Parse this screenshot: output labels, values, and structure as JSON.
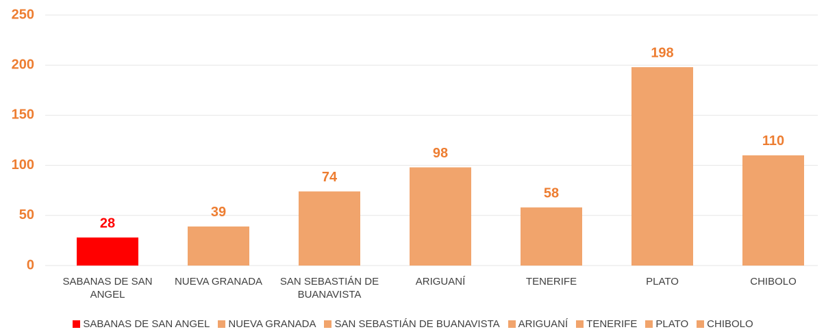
{
  "chart_data": {
    "type": "bar",
    "categories": [
      "SABANAS DE SAN ANGEL",
      "NUEVA GRANADA",
      "SAN SEBASTIÁN DE BUANAVISTA",
      "ARIGUANÍ",
      "TENERIFE",
      "PLATO",
      "CHIBOLO"
    ],
    "values": [
      28,
      39,
      74,
      98,
      58,
      198,
      110
    ],
    "colors": [
      "#ff0000",
      "#f1a46c",
      "#f1a46c",
      "#f1a46c",
      "#f1a46c",
      "#f1a46c",
      "#f1a46c"
    ],
    "value_label_colors": [
      "#ff0000",
      "#ed7d31",
      "#ed7d31",
      "#ed7d31",
      "#ed7d31",
      "#ed7d31",
      "#ed7d31"
    ],
    "tick_label_color": "#ed7d31",
    "ylim": [
      0,
      250
    ],
    "yticks": [
      0,
      50,
      100,
      150,
      200,
      250
    ],
    "grid": true,
    "legend": "bottom"
  }
}
